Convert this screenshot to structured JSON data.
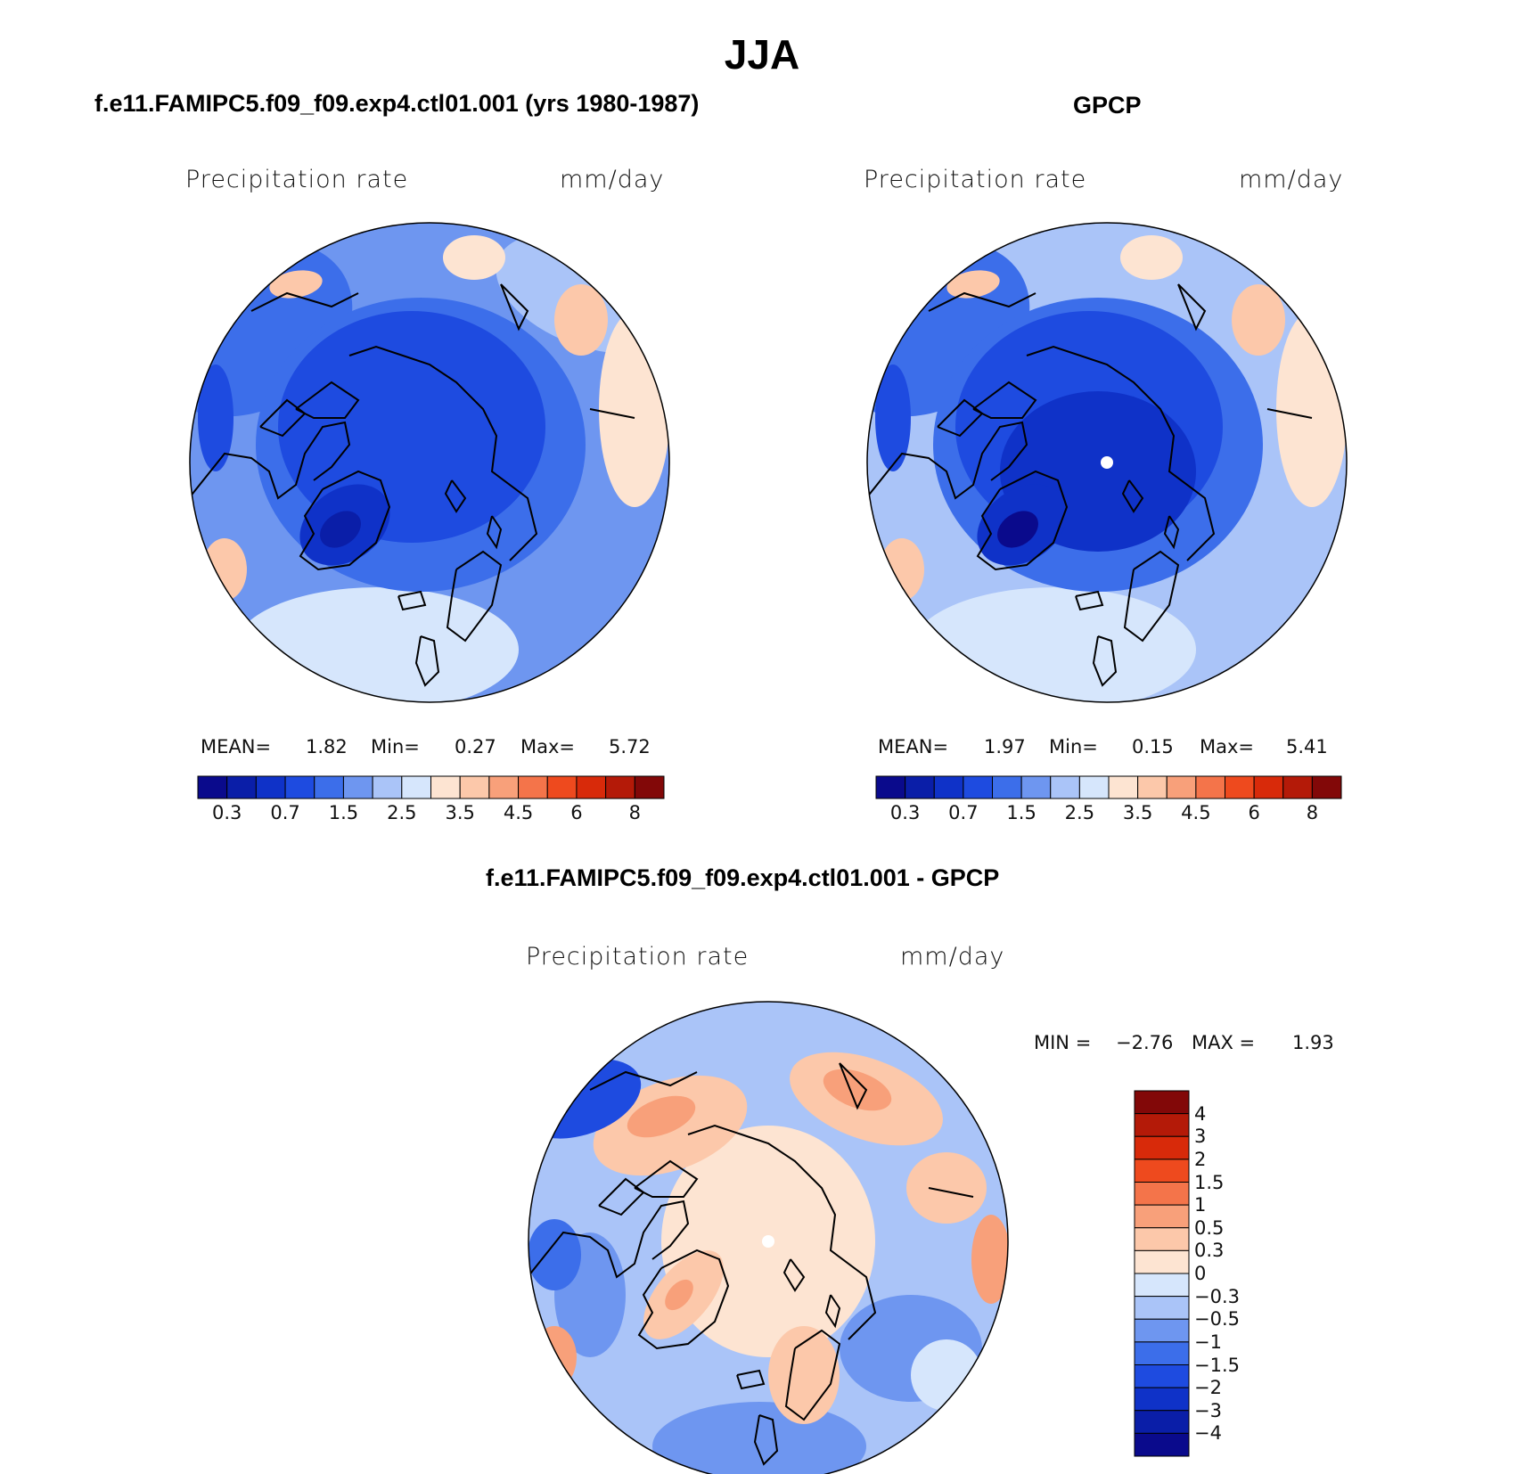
{
  "figure_title": "JJA",
  "chart_data": [
    {
      "type": "map",
      "panel_title": "f.e11.FAMIPC5.f09_f09.exp4.ctl01.001 (yrs 1980-1987)",
      "variable": "Precipitation rate",
      "units": "mm/day",
      "stats": {
        "mean_label": "MEAN=",
        "mean": "1.82",
        "min_label": "Min=",
        "min": "0.27",
        "max_label": "Max=",
        "max": "5.72"
      },
      "colorbar": {
        "orientation": "horizontal",
        "tick_labels": [
          "0.3",
          "0.7",
          "1.5",
          "2.5",
          "3.5",
          "4.5",
          "6",
          "8"
        ],
        "levels": [
          0.2,
          0.3,
          0.5,
          0.7,
          1,
          1.5,
          2,
          2.5,
          3,
          3.5,
          4,
          4.5,
          5,
          6,
          7,
          8
        ]
      }
    },
    {
      "type": "map",
      "panel_title": "GPCP",
      "variable": "Precipitation rate",
      "units": "mm/day",
      "stats": {
        "mean_label": "MEAN=",
        "mean": "1.97",
        "min_label": "Min=",
        "min": "0.15",
        "max_label": "Max=",
        "max": "5.41"
      },
      "colorbar": {
        "orientation": "horizontal",
        "tick_labels": [
          "0.3",
          "0.7",
          "1.5",
          "2.5",
          "3.5",
          "4.5",
          "6",
          "8"
        ],
        "levels": [
          0.2,
          0.3,
          0.5,
          0.7,
          1,
          1.5,
          2,
          2.5,
          3,
          3.5,
          4,
          4.5,
          5,
          6,
          7,
          8
        ]
      }
    },
    {
      "type": "map",
      "panel_title": "f.e11.FAMIPC5.f09_f09.exp4.ctl01.001 - GPCP",
      "variable": "Precipitation rate",
      "units": "mm/day",
      "stats": {
        "min_label": "MIN =",
        "min": "−2.76",
        "max_label": "MAX =",
        "max": "1.93"
      },
      "colorbar": {
        "orientation": "vertical",
        "tick_labels": [
          "4",
          "3",
          "2",
          "1.5",
          "1",
          "0.5",
          "0.3",
          "0",
          "−0.3",
          "−0.5",
          "−1",
          "−1.5",
          "−2",
          "−3",
          "−4"
        ]
      }
    }
  ],
  "palette": {
    "seq": [
      "#0a0a8c",
      "#0a1ea8",
      "#0f32c8",
      "#1e4be0",
      "#3c6eea",
      "#6e96f0",
      "#aac4f8",
      "#d6e6fc",
      "#fde4d2",
      "#fcc8aa",
      "#f8a07a",
      "#f4744a",
      "#ee4a1e",
      "#d82a0a",
      "#b41a08",
      "#820808"
    ],
    "diff": [
      "#820808",
      "#b41a08",
      "#d82a0a",
      "#ee4a1e",
      "#f4744a",
      "#f8a07a",
      "#fcc8aa",
      "#fde4d2",
      "#d6e6fc",
      "#aac4f8",
      "#6e96f0",
      "#3c6eea",
      "#1e4be0",
      "#0f32c8",
      "#0a1ea8",
      "#0a0a8c"
    ],
    "coast": "#000000"
  }
}
